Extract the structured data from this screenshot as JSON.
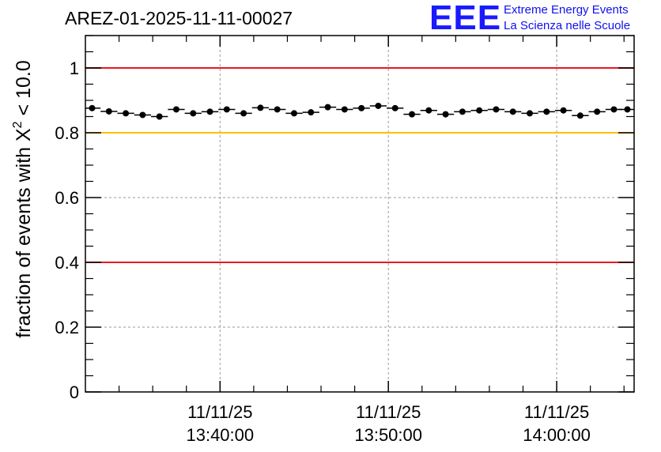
{
  "header": {
    "title": "AREZ-01-2025-11-11-00027",
    "logo_mark": "EEE",
    "logo_line1": "Extreme Energy Events",
    "logo_line2": "La Scienza nelle Scuole"
  },
  "chart_data": {
    "type": "scatter",
    "title": "AREZ-01-2025-11-11-00027",
    "ylabel_prefix": "fraction of events with ",
    "ylabel_symbol": "X",
    "ylabel_superscript": "2",
    "ylabel_suffix": " < 10.0",
    "ylim": [
      0,
      1.1
    ],
    "yticks": [
      0,
      0.2,
      0.4,
      0.6,
      0.8,
      1
    ],
    "ytick_labels": [
      "0",
      "0.2",
      "0.4",
      "0.6",
      "0.8",
      "1"
    ],
    "x_unit": "minutes after 13:32:00",
    "xlim": [
      0,
      32.6
    ],
    "xticks": [
      8,
      18,
      28
    ],
    "xtick_labels": [
      [
        "11/11/25",
        "13:40:00"
      ],
      [
        "11/11/25",
        "13:50:00"
      ],
      [
        "11/11/25",
        "14:00:00"
      ]
    ],
    "grid": true,
    "reference_lines": [
      {
        "y": 1.0,
        "color": "#e8191d"
      },
      {
        "y": 0.8,
        "color": "#ffc000"
      },
      {
        "y": 0.4,
        "color": "#e8191d"
      }
    ],
    "series": [
      {
        "name": "fraction",
        "x_halfwidth": 0.5,
        "x": [
          0.4,
          1.4,
          2.4,
          3.4,
          4.4,
          5.4,
          6.4,
          7.4,
          8.4,
          9.4,
          10.4,
          11.4,
          12.4,
          13.4,
          14.4,
          15.4,
          16.4,
          17.4,
          18.4,
          19.4,
          20.4,
          21.4,
          22.4,
          23.4,
          24.4,
          25.4,
          26.4,
          27.4,
          28.4,
          29.4,
          30.4,
          31.4,
          32.2
        ],
        "y": [
          0.876,
          0.866,
          0.86,
          0.855,
          0.85,
          0.872,
          0.86,
          0.865,
          0.872,
          0.86,
          0.877,
          0.872,
          0.86,
          0.863,
          0.879,
          0.872,
          0.876,
          0.883,
          0.876,
          0.857,
          0.869,
          0.857,
          0.865,
          0.869,
          0.872,
          0.865,
          0.86,
          0.865,
          0.869,
          0.853,
          0.865,
          0.872,
          0.872
        ]
      }
    ]
  }
}
